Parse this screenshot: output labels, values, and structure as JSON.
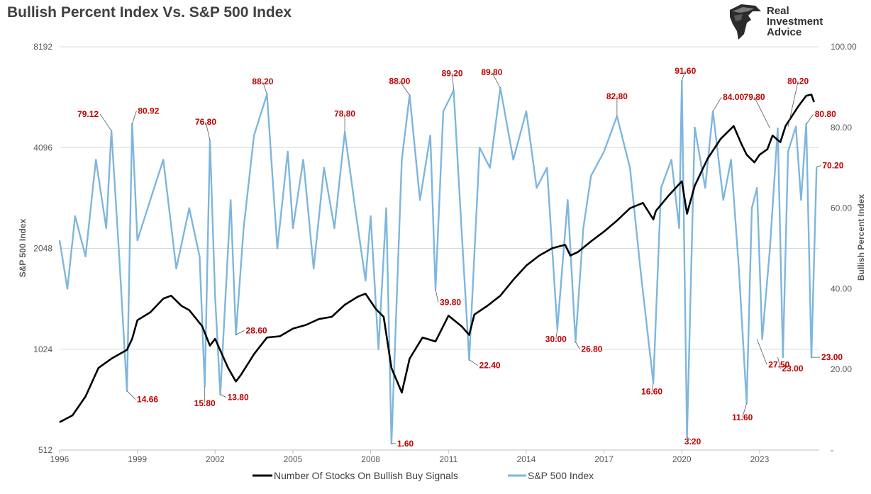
{
  "header": {
    "title": "Bullish Percent Index Vs. S&P 500 Index"
  },
  "logo": {
    "line1": "Real",
    "line2": "Investment",
    "line3": "Advice",
    "icon": "eagle-head-icon"
  },
  "chart_data": {
    "type": "line",
    "title": "Bullish Percent Index Vs. S&P 500 Index",
    "x_ticks": [
      "1996",
      "1999",
      "2002",
      "2005",
      "2008",
      "2011",
      "2014",
      "2017",
      "2020",
      "2023"
    ],
    "x_range": [
      1996,
      2025.3
    ],
    "left_axis": {
      "label": "S&P 500 Index",
      "scale": "log2",
      "ticks": [
        "512",
        "1024",
        "2048",
        "4096",
        "8192"
      ],
      "range": [
        512,
        8192
      ]
    },
    "right_axis": {
      "label": "Bullish Percent Index",
      "ticks": [
        "-",
        "20.00",
        "40.00",
        "60.00",
        "80.00",
        "100.00"
      ],
      "range": [
        0,
        100
      ]
    },
    "colors": {
      "stocks_series": "#000000",
      "sp500_series": "#7eb6de",
      "annotation": "#c00000",
      "grid": "#d9d9d9"
    },
    "legend": {
      "position": "bottom"
    },
    "series": [
      {
        "name": "Number Of Stocks On Bullish Buy Signals",
        "axis": "left",
        "x": [
          1996.0,
          1996.5,
          1997.0,
          1997.5,
          1998.0,
          1998.6,
          1998.8,
          1999.0,
          1999.5,
          2000.0,
          2000.3,
          2000.7,
          2001.0,
          2001.5,
          2001.8,
          2002.0,
          2002.5,
          2002.8,
          2003.0,
          2003.5,
          2004.0,
          2004.5,
          2005.0,
          2005.5,
          2006.0,
          2006.5,
          2007.0,
          2007.5,
          2007.8,
          2008.2,
          2008.5,
          2008.8,
          2009.2,
          2009.5,
          2010.0,
          2010.5,
          2011.0,
          2011.5,
          2011.8,
          2012.0,
          2012.5,
          2013.0,
          2013.5,
          2014.0,
          2014.5,
          2015.0,
          2015.5,
          2015.7,
          2016.0,
          2016.5,
          2017.0,
          2017.5,
          2018.0,
          2018.5,
          2018.9,
          2019.0,
          2019.5,
          2020.0,
          2020.2,
          2020.5,
          2021.0,
          2021.5,
          2022.0,
          2022.3,
          2022.5,
          2022.8,
          2023.0,
          2023.3,
          2023.5,
          2023.8,
          2024.0,
          2024.5,
          2024.8,
          2025.0,
          2025.1
        ],
        "values": [
          620,
          650,
          740,
          900,
          960,
          1020,
          1100,
          1250,
          1320,
          1450,
          1480,
          1380,
          1340,
          1200,
          1050,
          1100,
          900,
          820,
          860,
          990,
          1110,
          1120,
          1180,
          1210,
          1260,
          1280,
          1390,
          1470,
          1500,
          1350,
          1280,
          900,
          760,
          960,
          1110,
          1080,
          1290,
          1200,
          1130,
          1300,
          1380,
          1480,
          1650,
          1820,
          1950,
          2050,
          2100,
          1950,
          2000,
          2150,
          2300,
          2480,
          2700,
          2800,
          2500,
          2650,
          2950,
          3250,
          2600,
          3150,
          3800,
          4350,
          4750,
          4200,
          3900,
          3700,
          3900,
          4050,
          4450,
          4250,
          4750,
          5450,
          5850,
          5900,
          5600
        ]
      },
      {
        "name": "S&P 500 Index",
        "axis": "right",
        "x": [
          1996.0,
          1996.3,
          1996.6,
          1997.0,
          1997.4,
          1997.8,
          1998.0,
          1998.3,
          1998.6,
          1998.8,
          1999.0,
          1999.5,
          2000.0,
          2000.5,
          2001.0,
          2001.4,
          2001.6,
          2001.8,
          2002.0,
          2002.2,
          2002.6,
          2002.8,
          2003.1,
          2003.5,
          2004.0,
          2004.4,
          2004.8,
          2005.0,
          2005.4,
          2005.8,
          2006.2,
          2006.6,
          2007.0,
          2007.4,
          2007.8,
          2008.0,
          2008.3,
          2008.6,
          2008.8,
          2009.2,
          2009.5,
          2009.9,
          2010.3,
          2010.5,
          2010.8,
          2011.2,
          2011.5,
          2011.8,
          2012.2,
          2012.6,
          2013.0,
          2013.5,
          2014.0,
          2014.4,
          2014.8,
          2015.2,
          2015.6,
          2015.9,
          2016.2,
          2016.5,
          2017.0,
          2017.5,
          2018.0,
          2018.4,
          2018.9,
          2019.2,
          2019.6,
          2019.9,
          2020.0,
          2020.2,
          2020.5,
          2020.9,
          2021.2,
          2021.6,
          2021.9,
          2022.2,
          2022.5,
          2022.7,
          2022.9,
          2023.1,
          2023.4,
          2023.7,
          2023.9,
          2024.1,
          2024.4,
          2024.6,
          2024.8,
          2025.0,
          2025.2
        ],
        "values": [
          52,
          40,
          58,
          48,
          72,
          55,
          79.12,
          48,
          14.66,
          80.92,
          52,
          62,
          72,
          45,
          60,
          48,
          15.8,
          76.8,
          38,
          13.8,
          62,
          28.6,
          55,
          78,
          88.2,
          50,
          74,
          55,
          72,
          45,
          70,
          55,
          78.8,
          60,
          42,
          58,
          25,
          60,
          1.6,
          72,
          88,
          62,
          78,
          39.8,
          84,
          89.2,
          55,
          22.4,
          75,
          70,
          89.8,
          72,
          84,
          65,
          70,
          30,
          62,
          26.8,
          55,
          68,
          74,
          82.8,
          70,
          45,
          16.6,
          65,
          72,
          55,
          91.6,
          3.2,
          80,
          65,
          84,
          62,
          72,
          45,
          11.6,
          60,
          65,
          27.5,
          50,
          79.8,
          23,
          74,
          80.2,
          62,
          80.8,
          23,
          70.2
        ]
      }
    ],
    "annotations": [
      {
        "text": "79.12",
        "x": 1998.0,
        "value": 79.12,
        "anchor": "end",
        "dx": -18,
        "dy": -20
      },
      {
        "text": "80.92",
        "x": 1998.8,
        "value": 80.92,
        "anchor": "start",
        "dx": 8,
        "dy": -14
      },
      {
        "text": "14.66",
        "x": 1998.6,
        "value": 14.66,
        "anchor": "start",
        "dx": 14,
        "dy": 16
      },
      {
        "text": "76.80",
        "x": 2001.8,
        "value": 76.8,
        "anchor": "middle",
        "dx": -6,
        "dy": -22
      },
      {
        "text": "15.80",
        "x": 2001.6,
        "value": 15.8,
        "anchor": "middle",
        "dx": 0,
        "dy": 28
      },
      {
        "text": "13.80",
        "x": 2002.2,
        "value": 13.8,
        "anchor": "start",
        "dx": 10,
        "dy": 8
      },
      {
        "text": "28.60",
        "x": 2002.8,
        "value": 28.6,
        "anchor": "start",
        "dx": 14,
        "dy": -2
      },
      {
        "text": "88.20",
        "x": 2004.0,
        "value": 88.2,
        "anchor": "middle",
        "dx": -6,
        "dy": -14
      },
      {
        "text": "78.80",
        "x": 2007.0,
        "value": 78.8,
        "anchor": "middle",
        "dx": 0,
        "dy": -22
      },
      {
        "text": "1.60",
        "x": 2008.8,
        "value": 1.6,
        "anchor": "start",
        "dx": 8,
        "dy": 4
      },
      {
        "text": "88.00",
        "x": 2009.5,
        "value": 88,
        "anchor": "middle",
        "dx": -14,
        "dy": -16
      },
      {
        "text": "39.80",
        "x": 2010.5,
        "value": 39.8,
        "anchor": "start",
        "dx": 6,
        "dy": 22
      },
      {
        "text": "89.20",
        "x": 2011.2,
        "value": 89.2,
        "anchor": "middle",
        "dx": -2,
        "dy": -20
      },
      {
        "text": "22.40",
        "x": 2011.8,
        "value": 22.4,
        "anchor": "start",
        "dx": 14,
        "dy": 12
      },
      {
        "text": "89.80",
        "x": 2013.0,
        "value": 89.8,
        "anchor": "middle",
        "dx": -12,
        "dy": -18
      },
      {
        "text": "30.00",
        "x": 2015.2,
        "value": 30,
        "anchor": "middle",
        "dx": -2,
        "dy": 18
      },
      {
        "text": "26.80",
        "x": 2015.9,
        "value": 26.8,
        "anchor": "start",
        "dx": 8,
        "dy": 14
      },
      {
        "text": "82.80",
        "x": 2017.5,
        "value": 82.8,
        "anchor": "middle",
        "dx": 0,
        "dy": -24
      },
      {
        "text": "16.60",
        "x": 2018.9,
        "value": 16.6,
        "anchor": "middle",
        "dx": -2,
        "dy": 16
      },
      {
        "text": "91.60",
        "x": 2020.0,
        "value": 91.6,
        "anchor": "middle",
        "dx": 5,
        "dy": -10
      },
      {
        "text": "3.20",
        "x": 2020.2,
        "value": 3.2,
        "anchor": "middle",
        "dx": 8,
        "dy": 10
      },
      {
        "text": "84.00",
        "x": 2021.2,
        "value": 84,
        "anchor": "start",
        "dx": 14,
        "dy": -16
      },
      {
        "text": "11.60",
        "x": 2022.5,
        "value": 11.6,
        "anchor": "middle",
        "dx": -6,
        "dy": 24
      },
      {
        "text": "79.80",
        "x": 2023.4,
        "value": 79.8,
        "anchor": "middle",
        "dx": -22,
        "dy": -40
      },
      {
        "text": "27.50",
        "x": 2022.9,
        "value": 27.5,
        "anchor": "start",
        "dx": 16,
        "dy": 40
      },
      {
        "text": "23.00",
        "x": 2023.7,
        "value": 23,
        "anchor": "start",
        "dx": 6,
        "dy": 20
      },
      {
        "text": "80.20",
        "x": 2024.1,
        "value": 80.2,
        "anchor": "middle",
        "dx": 14,
        "dy": -60
      },
      {
        "text": "80.80",
        "x": 2024.8,
        "value": 80.8,
        "anchor": "start",
        "dx": 12,
        "dy": -10
      },
      {
        "text": "70.20",
        "x": 2025.2,
        "value": 70.2,
        "anchor": "start",
        "dx": 8,
        "dy": 2
      },
      {
        "text": "23.00",
        "x": 2025.0,
        "value": 23,
        "anchor": "start",
        "dx": 14,
        "dy": 4
      }
    ]
  }
}
